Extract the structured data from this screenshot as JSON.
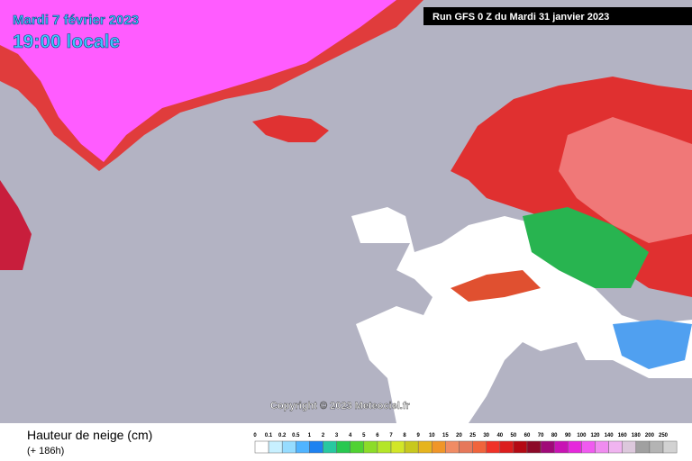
{
  "map": {
    "date": "Mardi 7 février 2023",
    "hour": "19:00 locale",
    "run": "Run GFS 0 Z du Mardi 31 janvier 2023",
    "copyright": "Copyright © 2023 Meteociel.fr"
  },
  "legend": {
    "title": "Hauteur de neige (cm)",
    "subtitle": "(+ 186h)",
    "levels": [
      0,
      0.1,
      0.2,
      0.5,
      1,
      2,
      3,
      4,
      5,
      6,
      7,
      8,
      9,
      10,
      15,
      20,
      25,
      30,
      40,
      50,
      60,
      70,
      80,
      90,
      100,
      120,
      140,
      160,
      180,
      200,
      250
    ],
    "colors": [
      "#ffffff",
      "#c8f0ff",
      "#96dcff",
      "#50b4ff",
      "#1e82f0",
      "#28c8a0",
      "#28c850",
      "#50d232",
      "#8cdc28",
      "#b4e628",
      "#d2e628",
      "#c8c81e",
      "#e6b41e",
      "#f09628",
      "#f08c64",
      "#e6785a",
      "#f0643c",
      "#f03228",
      "#dc1e1e",
      "#b40a14",
      "#8c0a28",
      "#a00a78",
      "#c814b4",
      "#e628dc",
      "#f05af0",
      "#f08cf0",
      "#f0b4f0",
      "#dcc8dc",
      "#a0a0a0",
      "#b4b4b4",
      "#d2d2d2"
    ]
  }
}
